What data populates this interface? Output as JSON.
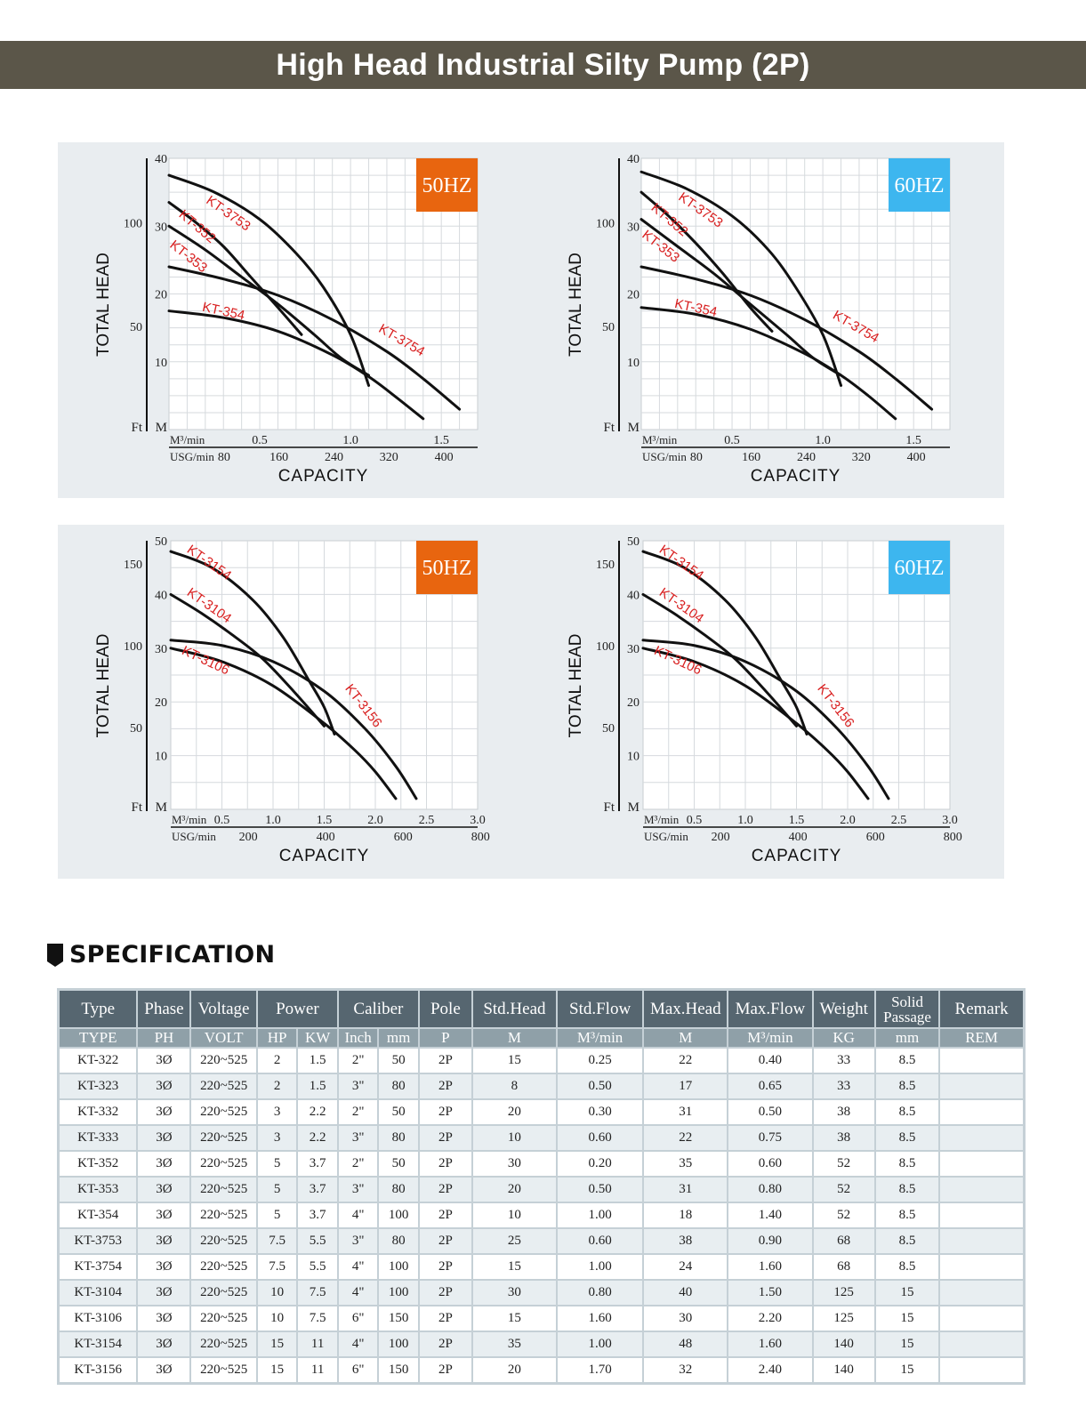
{
  "page": {
    "title": "High Head Industrial Silty Pump (2P)"
  },
  "colors": {
    "title_bar": "#5b5649",
    "badge_50hz": "#e8650f",
    "badge_60hz": "#3db6ef",
    "curve_label": "#d81e1e",
    "panel_bg": "#e9edf0",
    "table_header": "#566670",
    "table_subheader": "#8fa0a8"
  },
  "chart_data": [
    {
      "type": "line",
      "id": "chart-small-50hz",
      "badge": "50HZ",
      "ylabel": "TOTAL HEAD",
      "xlabel": "CAPACITY",
      "y_unit_left": "Ft",
      "y_unit_right": "M",
      "x_unit_top": "M³/min",
      "x_unit_bottom": "USG/min",
      "xlim": [
        0,
        1.7
      ],
      "ylim": [
        0,
        40
      ],
      "x_ticks_m3": [
        "0.5",
        "1.0",
        "1.5"
      ],
      "x_ticks_m3_values": [
        0.5,
        1.0,
        1.5
      ],
      "x_ticks_usg": [
        "80",
        "160",
        "240",
        "320",
        "400"
      ],
      "x_ticks_usg_values": [
        80,
        160,
        240,
        320,
        400
      ],
      "y_ticks_m": [
        "10",
        "20",
        "30",
        "40"
      ],
      "y_ticks_m_values": [
        10,
        20,
        30,
        40
      ],
      "y_ticks_ft": [
        "50",
        "100"
      ],
      "y_ticks_ft_values": [
        50,
        100
      ],
      "grid": true,
      "x_grid_step": 0.1,
      "y_grid_step": 2.5,
      "series": [
        {
          "name": "KT-3753",
          "x": [
            0,
            0.25,
            0.5,
            0.7,
            0.85,
            1.0,
            1.1
          ],
          "y": [
            37.5,
            35,
            31,
            26,
            21,
            14,
            6.5
          ],
          "label_at": [
            0.2,
            33.5
          ],
          "label_angle": 35
        },
        {
          "name": "KT-352",
          "x": [
            0,
            0.15,
            0.3,
            0.45,
            0.6,
            0.73
          ],
          "y": [
            33.5,
            30.5,
            27,
            22.5,
            18,
            14
          ],
          "label_at": [
            0.05,
            31.5
          ],
          "label_angle": 40
        },
        {
          "name": "KT-353",
          "x": [
            0,
            0.2,
            0.4,
            0.6,
            0.8,
            0.95,
            1.1
          ],
          "y": [
            30,
            26.5,
            22.5,
            18.5,
            14,
            10.5,
            8
          ],
          "label_at": [
            0.0,
            27
          ],
          "label_angle": 38
        },
        {
          "name": "KT-3754",
          "x": [
            0,
            0.3,
            0.6,
            0.9,
            1.2,
            1.4,
            1.6
          ],
          "y": [
            24,
            22.2,
            19.8,
            16.2,
            11.5,
            7.5,
            3
          ],
          "label_at": [
            1.15,
            14.5
          ],
          "label_angle": 30
        },
        {
          "name": "KT-354",
          "x": [
            0,
            0.3,
            0.6,
            0.9,
            1.1,
            1.25,
            1.4
          ],
          "y": [
            17.5,
            16.5,
            14.5,
            11,
            7.8,
            4.8,
            1.6
          ],
          "label_at": [
            0.18,
            17.5
          ],
          "label_angle": 12
        }
      ]
    },
    {
      "type": "line",
      "id": "chart-small-60hz",
      "badge": "60HZ",
      "ylabel": "TOTAL HEAD",
      "xlabel": "CAPACITY",
      "y_unit_left": "Ft",
      "y_unit_right": "M",
      "x_unit_top": "M³/min",
      "x_unit_bottom": "USG/min",
      "xlim": [
        0,
        1.7
      ],
      "ylim": [
        0,
        40
      ],
      "x_ticks_m3": [
        "0.5",
        "1.0",
        "1.5"
      ],
      "x_ticks_m3_values": [
        0.5,
        1.0,
        1.5
      ],
      "x_ticks_usg": [
        "80",
        "160",
        "240",
        "320",
        "400"
      ],
      "x_ticks_usg_values": [
        80,
        160,
        240,
        320,
        400
      ],
      "y_ticks_m": [
        "10",
        "20",
        "30",
        "40"
      ],
      "y_ticks_m_values": [
        10,
        20,
        30,
        40
      ],
      "y_ticks_ft": [
        "50",
        "100"
      ],
      "y_ticks_ft_values": [
        50,
        100
      ],
      "grid": true,
      "x_grid_step": 0.1,
      "y_grid_step": 2.5,
      "series": [
        {
          "name": "KT-3753",
          "x": [
            0,
            0.25,
            0.5,
            0.7,
            0.85,
            1.0,
            1.1
          ],
          "y": [
            38,
            35.5,
            31.5,
            26.5,
            21,
            14,
            6.5
          ],
          "label_at": [
            0.2,
            34
          ],
          "label_angle": 35
        },
        {
          "name": "KT-352",
          "x": [
            0,
            0.15,
            0.3,
            0.45,
            0.6,
            0.72
          ],
          "y": [
            35,
            31.5,
            27.5,
            23,
            18,
            14.5
          ],
          "label_at": [
            0.05,
            32.5
          ],
          "label_angle": 40
        },
        {
          "name": "KT-353",
          "x": [
            0,
            0.2,
            0.4,
            0.6,
            0.8,
            0.95,
            1.1
          ],
          "y": [
            31,
            27,
            23,
            18.5,
            14,
            10.5,
            8
          ],
          "label_at": [
            0.0,
            28.5
          ],
          "label_angle": 38
        },
        {
          "name": "KT-3754",
          "x": [
            0,
            0.3,
            0.6,
            0.9,
            1.2,
            1.4,
            1.6
          ],
          "y": [
            24,
            22.2,
            19.8,
            16.2,
            11.5,
            7.5,
            3
          ],
          "label_at": [
            1.05,
            16.5
          ],
          "label_angle": 30
        },
        {
          "name": "KT-354",
          "x": [
            0,
            0.3,
            0.6,
            0.9,
            1.1,
            1.25,
            1.4
          ],
          "y": [
            18,
            17,
            14.8,
            11.2,
            8,
            5,
            1.6
          ],
          "label_at": [
            0.18,
            18
          ],
          "label_angle": 12
        }
      ]
    },
    {
      "type": "line",
      "id": "chart-large-50hz",
      "badge": "50HZ",
      "ylabel": "TOTAL HEAD",
      "xlabel": "CAPACITY",
      "y_unit_left": "Ft",
      "y_unit_right": "M",
      "x_unit_top": "M³/min",
      "x_unit_bottom": "USG/min",
      "xlim": [
        0,
        3.0
      ],
      "ylim": [
        0,
        50
      ],
      "x_ticks_m3": [
        "0.5",
        "1.0",
        "1.5",
        "2.0",
        "2.5",
        "3.0"
      ],
      "x_ticks_m3_values": [
        0.5,
        1.0,
        1.5,
        2.0,
        2.5,
        3.0
      ],
      "x_ticks_usg": [
        "200",
        "400",
        "600",
        "800"
      ],
      "x_ticks_usg_values": [
        200,
        400,
        600,
        800
      ],
      "y_ticks_m": [
        "10",
        "20",
        "30",
        "40",
        "50"
      ],
      "y_ticks_m_values": [
        10,
        20,
        30,
        40,
        50
      ],
      "y_ticks_ft": [
        "50",
        "100",
        "150"
      ],
      "y_ticks_ft_values": [
        50,
        100,
        150
      ],
      "grid": true,
      "x_grid_step": 0.25,
      "y_grid_step": 5,
      "series": [
        {
          "name": "KT-3154",
          "x": [
            0,
            0.4,
            0.8,
            1.1,
            1.35,
            1.5,
            1.6
          ],
          "y": [
            48,
            45,
            39,
            32,
            24,
            19,
            14
          ],
          "label_at": [
            0.15,
            48
          ],
          "label_angle": 35
        },
        {
          "name": "KT-3104",
          "x": [
            0,
            0.3,
            0.6,
            0.9,
            1.2,
            1.5
          ],
          "y": [
            40,
            36.5,
            32.5,
            28,
            22,
            15.5
          ],
          "label_at": [
            0.15,
            40
          ],
          "label_angle": 35
        },
        {
          "name": "KT-3156",
          "x": [
            0,
            0.5,
            1.0,
            1.5,
            1.9,
            2.2,
            2.4
          ],
          "y": [
            31.5,
            30.5,
            27.5,
            22,
            15,
            8,
            2
          ],
          "label_at": [
            1.7,
            22.5
          ],
          "label_angle": 52
        },
        {
          "name": "KT-3106",
          "x": [
            0,
            0.5,
            1.0,
            1.5,
            1.8,
            2.0,
            2.2
          ],
          "y": [
            30,
            27.5,
            23,
            16,
            11,
            7,
            2
          ],
          "label_at": [
            0.1,
            29
          ],
          "label_angle": 25
        }
      ]
    },
    {
      "type": "line",
      "id": "chart-large-60hz",
      "badge": "60HZ",
      "ylabel": "TOTAL HEAD",
      "xlabel": "CAPACITY",
      "y_unit_left": "Ft",
      "y_unit_right": "M",
      "x_unit_top": "M³/min",
      "x_unit_bottom": "USG/min",
      "xlim": [
        0,
        3.0
      ],
      "ylim": [
        0,
        50
      ],
      "x_ticks_m3": [
        "0.5",
        "1.0",
        "1.5",
        "2.0",
        "2.5",
        "3.0"
      ],
      "x_ticks_m3_values": [
        0.5,
        1.0,
        1.5,
        2.0,
        2.5,
        3.0
      ],
      "x_ticks_usg": [
        "200",
        "400",
        "600",
        "800"
      ],
      "x_ticks_usg_values": [
        200,
        400,
        600,
        800
      ],
      "y_ticks_m": [
        "10",
        "20",
        "30",
        "40",
        "50"
      ],
      "y_ticks_m_values": [
        10,
        20,
        30,
        40,
        50
      ],
      "y_ticks_ft": [
        "50",
        "100",
        "150"
      ],
      "y_ticks_ft_values": [
        50,
        100,
        150
      ],
      "grid": true,
      "x_grid_step": 0.25,
      "y_grid_step": 5,
      "series": [
        {
          "name": "KT-3154",
          "x": [
            0,
            0.4,
            0.8,
            1.1,
            1.35,
            1.5,
            1.6
          ],
          "y": [
            48,
            45,
            39,
            32,
            24,
            19,
            14
          ],
          "label_at": [
            0.15,
            48
          ],
          "label_angle": 35
        },
        {
          "name": "KT-3104",
          "x": [
            0,
            0.3,
            0.6,
            0.9,
            1.2,
            1.5
          ],
          "y": [
            40,
            36.5,
            32.5,
            28,
            22,
            15.5
          ],
          "label_at": [
            0.15,
            40
          ],
          "label_angle": 35
        },
        {
          "name": "KT-3156",
          "x": [
            0,
            0.5,
            1.0,
            1.5,
            1.9,
            2.2,
            2.4
          ],
          "y": [
            31.5,
            30.5,
            27.5,
            22,
            15,
            8,
            2
          ],
          "label_at": [
            1.7,
            22.5
          ],
          "label_angle": 52
        },
        {
          "name": "KT-3106",
          "x": [
            0,
            0.5,
            1.0,
            1.5,
            1.8,
            2.0,
            2.2
          ],
          "y": [
            30,
            27.5,
            23,
            16,
            11,
            7,
            2
          ],
          "label_at": [
            0.1,
            29
          ],
          "label_angle": 25
        }
      ]
    }
  ],
  "specification": {
    "heading": "SPECIFICATION",
    "header_row1": [
      {
        "label": "Type",
        "colspan": 1
      },
      {
        "label": "Phase",
        "colspan": 1
      },
      {
        "label": "Voltage",
        "colspan": 1
      },
      {
        "label": "Power",
        "colspan": 2
      },
      {
        "label": "Caliber",
        "colspan": 2
      },
      {
        "label": "Pole",
        "colspan": 1
      },
      {
        "label": "Std.Head",
        "colspan": 1
      },
      {
        "label": "Std.Flow",
        "colspan": 1
      },
      {
        "label": "Max.Head",
        "colspan": 1
      },
      {
        "label": "Max.Flow",
        "colspan": 1
      },
      {
        "label": "Weight",
        "colspan": 1
      },
      {
        "label": "Solid Passage",
        "colspan": 1
      },
      {
        "label": "Remark",
        "colspan": 1
      }
    ],
    "header_row2": [
      "TYPE",
      "PH",
      "VOLT",
      "HP",
      "KW",
      "Inch",
      "mm",
      "P",
      "M",
      "M³/min",
      "M",
      "M³/min",
      "KG",
      "mm",
      "REM"
    ],
    "rows": [
      [
        "KT-322",
        "3Ø",
        "220~525",
        "2",
        "1.5",
        "2\"",
        "50",
        "2P",
        "15",
        "0.25",
        "22",
        "0.40",
        "33",
        "8.5",
        ""
      ],
      [
        "KT-323",
        "3Ø",
        "220~525",
        "2",
        "1.5",
        "3\"",
        "80",
        "2P",
        "8",
        "0.50",
        "17",
        "0.65",
        "33",
        "8.5",
        ""
      ],
      [
        "KT-332",
        "3Ø",
        "220~525",
        "3",
        "2.2",
        "2\"",
        "50",
        "2P",
        "20",
        "0.30",
        "31",
        "0.50",
        "38",
        "8.5",
        ""
      ],
      [
        "KT-333",
        "3Ø",
        "220~525",
        "3",
        "2.2",
        "3\"",
        "80",
        "2P",
        "10",
        "0.60",
        "22",
        "0.75",
        "38",
        "8.5",
        ""
      ],
      [
        "KT-352",
        "3Ø",
        "220~525",
        "5",
        "3.7",
        "2\"",
        "50",
        "2P",
        "30",
        "0.20",
        "35",
        "0.60",
        "52",
        "8.5",
        ""
      ],
      [
        "KT-353",
        "3Ø",
        "220~525",
        "5",
        "3.7",
        "3\"",
        "80",
        "2P",
        "20",
        "0.50",
        "31",
        "0.80",
        "52",
        "8.5",
        ""
      ],
      [
        "KT-354",
        "3Ø",
        "220~525",
        "5",
        "3.7",
        "4\"",
        "100",
        "2P",
        "10",
        "1.00",
        "18",
        "1.40",
        "52",
        "8.5",
        ""
      ],
      [
        "KT-3753",
        "3Ø",
        "220~525",
        "7.5",
        "5.5",
        "3\"",
        "80",
        "2P",
        "25",
        "0.60",
        "38",
        "0.90",
        "68",
        "8.5",
        ""
      ],
      [
        "KT-3754",
        "3Ø",
        "220~525",
        "7.5",
        "5.5",
        "4\"",
        "100",
        "2P",
        "15",
        "1.00",
        "24",
        "1.60",
        "68",
        "8.5",
        ""
      ],
      [
        "KT-3104",
        "3Ø",
        "220~525",
        "10",
        "7.5",
        "4\"",
        "100",
        "2P",
        "30",
        "0.80",
        "40",
        "1.50",
        "125",
        "15",
        ""
      ],
      [
        "KT-3106",
        "3Ø",
        "220~525",
        "10",
        "7.5",
        "6\"",
        "150",
        "2P",
        "15",
        "1.60",
        "30",
        "2.20",
        "125",
        "15",
        ""
      ],
      [
        "KT-3154",
        "3Ø",
        "220~525",
        "15",
        "11",
        "4\"",
        "100",
        "2P",
        "35",
        "1.00",
        "48",
        "1.60",
        "140",
        "15",
        ""
      ],
      [
        "KT-3156",
        "3Ø",
        "220~525",
        "15",
        "11",
        "6\"",
        "150",
        "2P",
        "20",
        "1.70",
        "32",
        "2.40",
        "140",
        "15",
        ""
      ]
    ]
  }
}
